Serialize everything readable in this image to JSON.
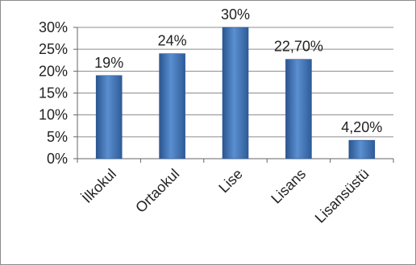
{
  "chart_data": {
    "type": "bar",
    "title": "",
    "xlabel": "",
    "ylabel": "",
    "categories": [
      "İlkokul",
      "Ortaokul",
      "Lise",
      "Lisans",
      "Lisansüstü"
    ],
    "values": [
      19,
      24,
      30,
      22.7,
      4.2
    ],
    "data_labels": [
      "19%",
      "24%",
      "30%",
      "22,70%",
      "4,20%"
    ],
    "ylim": [
      0,
      30
    ],
    "y_ticks": [
      0,
      5,
      10,
      15,
      20,
      25,
      30
    ],
    "y_tick_labels": [
      "0%",
      "5%",
      "10%",
      "15%",
      "20%",
      "25%",
      "30%"
    ],
    "grid": true,
    "legend": "none",
    "bar_color": "#4a7ebb",
    "gridline_color": "#8c8c8c"
  }
}
